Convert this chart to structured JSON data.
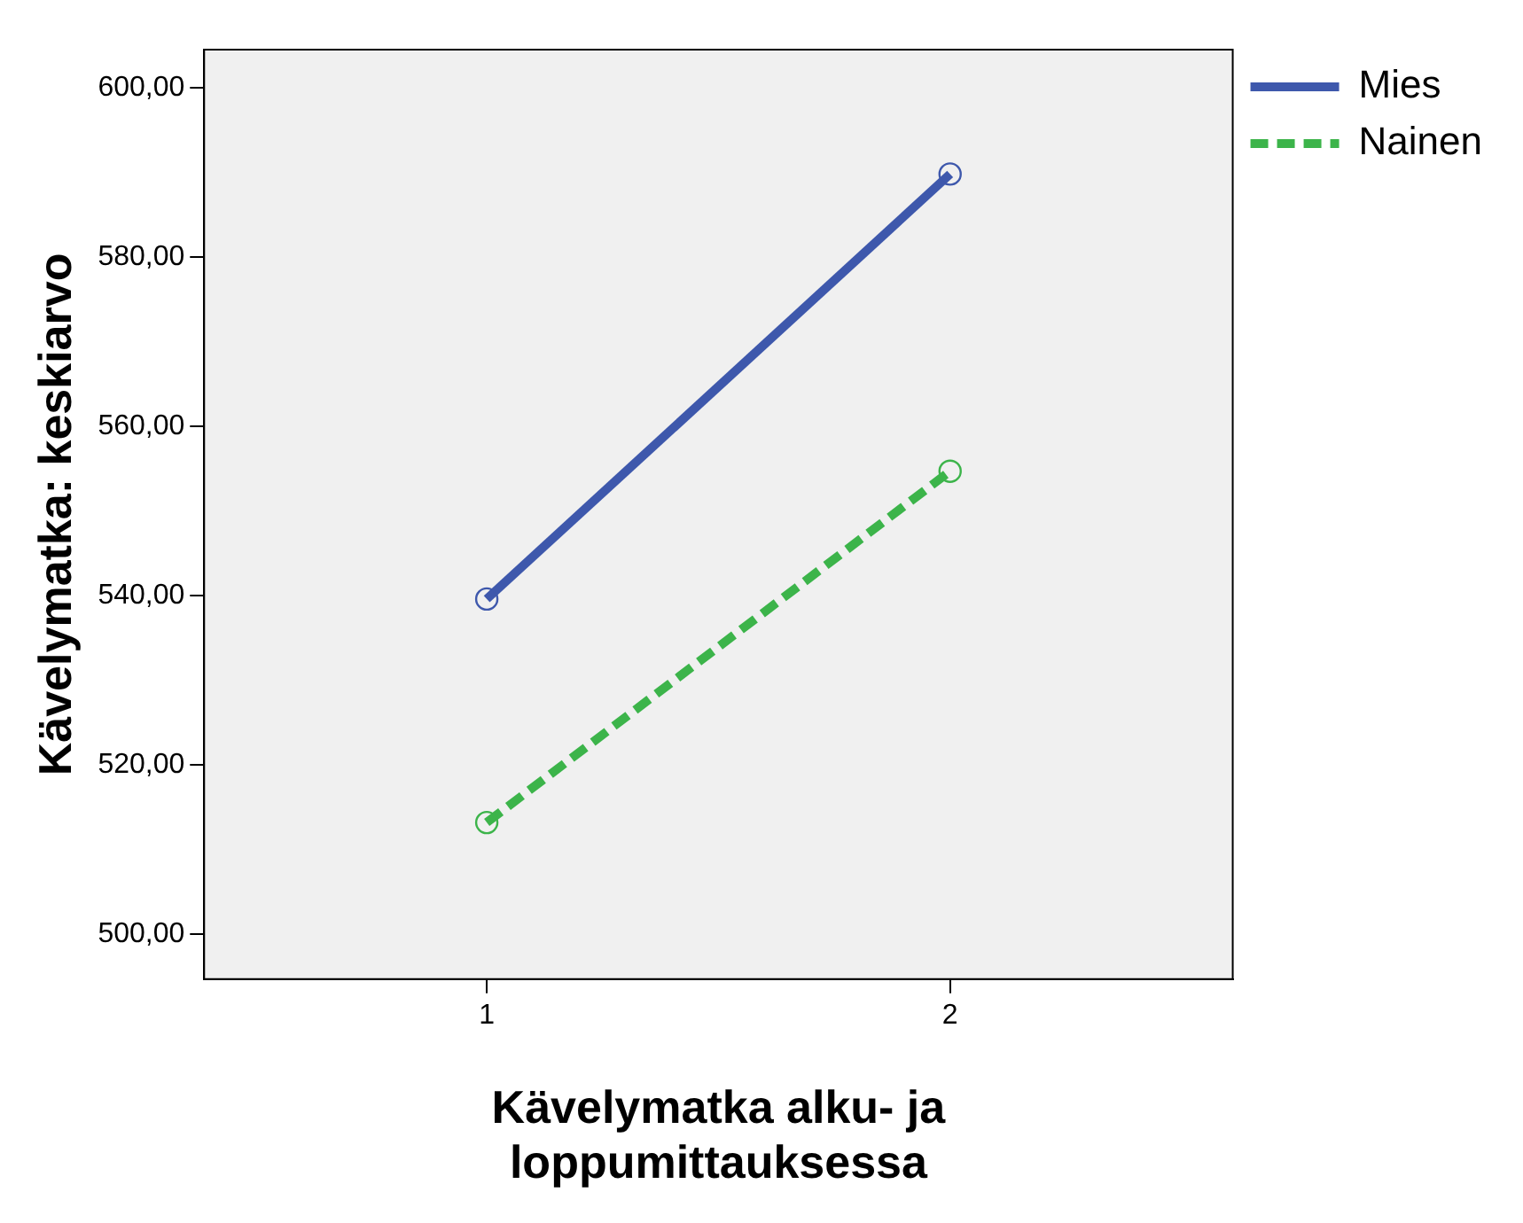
{
  "chart_data": {
    "type": "line",
    "xlabel": "Kävelymatka alku- ja\nloppumittauksessa",
    "ylabel": "Kävelymatka: keskiarvo",
    "x": [
      1,
      2
    ],
    "xlim": [
      0.39,
      2.61
    ],
    "xticks": [
      1,
      2
    ],
    "ylim": [
      494.7,
      604.5
    ],
    "yticks": [
      {
        "value": 500,
        "label": "500,00"
      },
      {
        "value": 520,
        "label": "520,00"
      },
      {
        "value": 540,
        "label": "540,00"
      },
      {
        "value": 560,
        "label": "560,00"
      },
      {
        "value": 580,
        "label": "580,00"
      },
      {
        "value": 600,
        "label": "600,00"
      }
    ],
    "series": [
      {
        "name": "Mies",
        "color": "#3e58ac",
        "values": [
          539.6,
          589.8
        ],
        "line_style": "solid"
      },
      {
        "name": "Nainen",
        "color": "#3cb44a",
        "values": [
          513.2,
          554.7
        ],
        "line_style": "dashed"
      }
    ],
    "marker": "circle",
    "grid": false,
    "legend": "top right"
  }
}
